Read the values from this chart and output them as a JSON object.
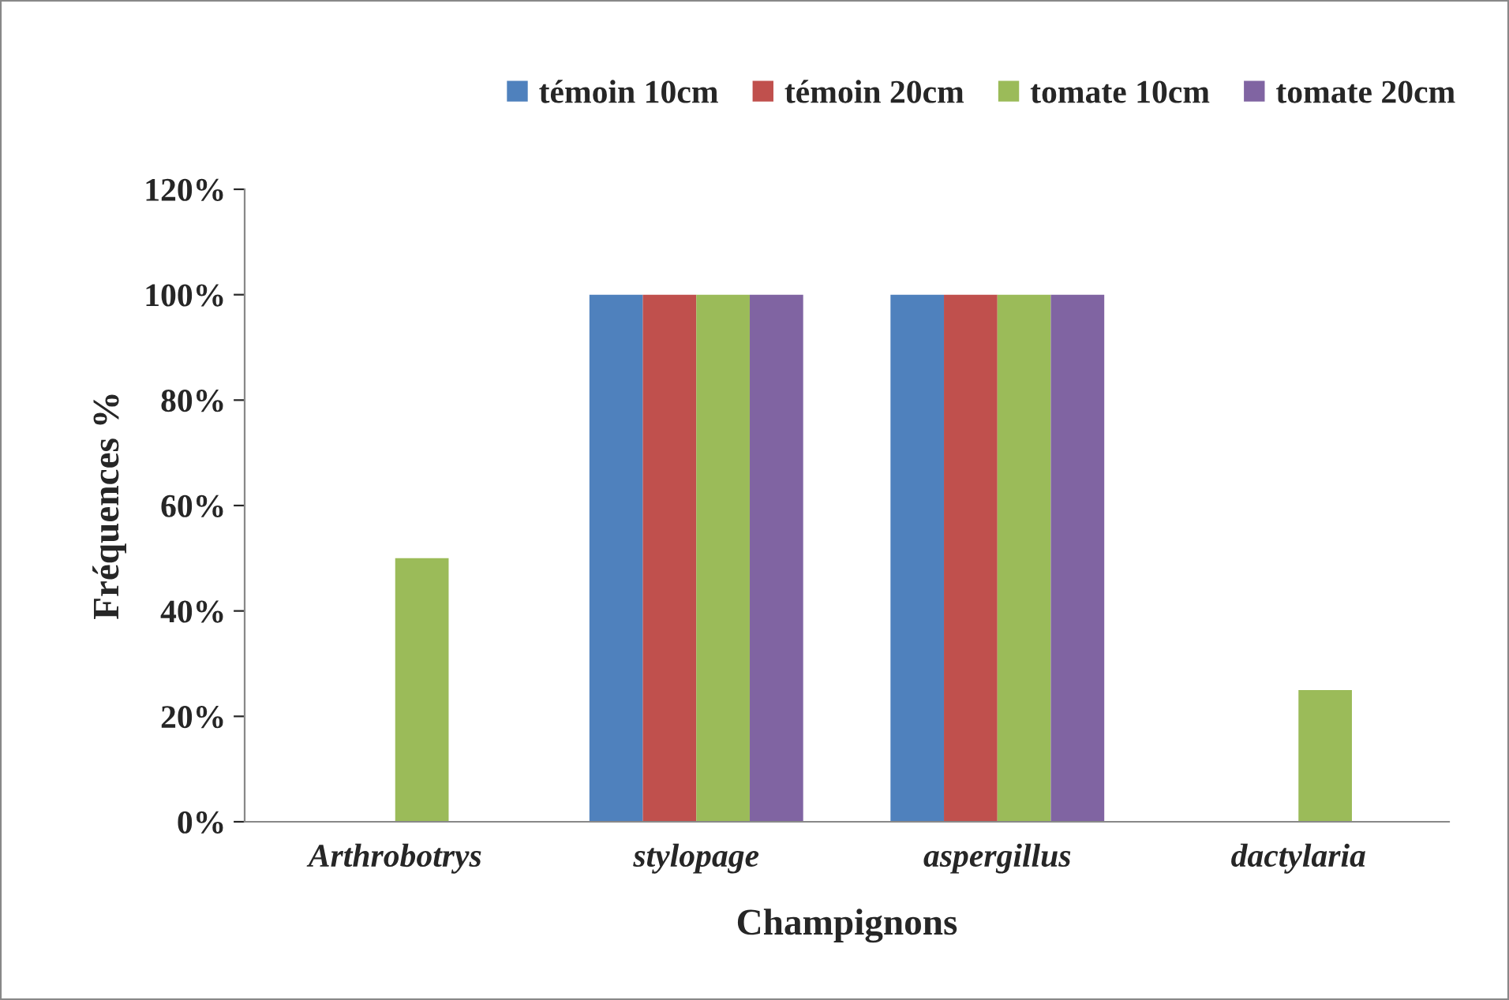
{
  "chart_data": {
    "type": "bar",
    "xlabel": "Champignons",
    "ylabel": "Fréquences %",
    "categories": [
      "Arthrobotrys",
      "stylopage",
      "aspergillus",
      "dactylaria"
    ],
    "series": [
      {
        "name": "témoin 10cm",
        "color": "#4f81bd",
        "values": [
          0,
          100,
          100,
          0
        ]
      },
      {
        "name": "témoin 20cm",
        "color": "#c0504d",
        "values": [
          0,
          100,
          100,
          0
        ]
      },
      {
        "name": "tomate 10cm",
        "color": "#9bbb59",
        "values": [
          50,
          100,
          100,
          25
        ]
      },
      {
        "name": "tomate 20cm",
        "color": "#8064a2",
        "values": [
          0,
          100,
          100,
          0
        ]
      }
    ],
    "ylim": [
      0,
      120
    ],
    "yticks": [
      {
        "value": 0,
        "label": "0%"
      },
      {
        "value": 20,
        "label": "20%"
      },
      {
        "value": 40,
        "label": "40%"
      },
      {
        "value": 60,
        "label": "60%"
      },
      {
        "value": 80,
        "label": "80%"
      },
      {
        "value": 100,
        "label": "100%"
      },
      {
        "value": 120,
        "label": "120%"
      }
    ],
    "grid": false,
    "legend": "top right"
  }
}
